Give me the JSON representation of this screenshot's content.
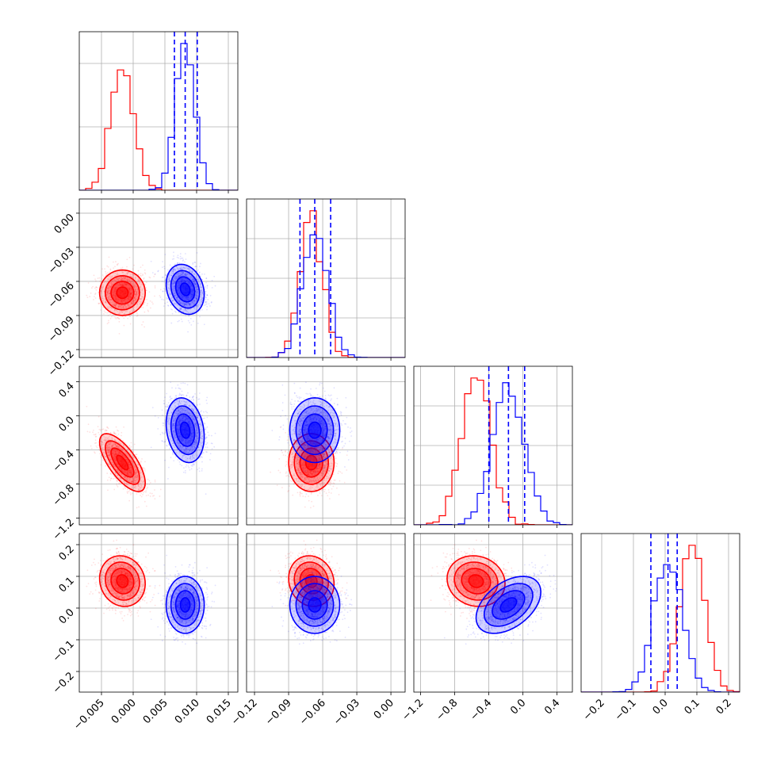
{
  "figure": {
    "kind": "corner plot",
    "series_colors": {
      "red": "#ff0000",
      "blue": "#0000ff"
    }
  },
  "chart_data": {
    "type": "corner",
    "n_params": 4,
    "grid": true,
    "axes": [
      {
        "range": [
          -0.0085,
          0.0165
        ],
        "ticks": [
          -0.005,
          0.0,
          0.005,
          0.01,
          0.015
        ],
        "tick_labels": [
          "−0.005",
          "0.000",
          "0.005",
          "0.010",
          "0.015"
        ]
      },
      {
        "range": [
          -0.127,
          0.0125
        ],
        "ticks": [
          -0.12,
          -0.09,
          -0.06,
          -0.03,
          0.0
        ],
        "tick_labels": [
          "−0.12",
          "−0.09",
          "−0.06",
          "−0.03",
          "0.00"
        ]
      },
      {
        "range": [
          -1.28,
          0.58
        ],
        "ticks": [
          -1.2,
          -0.8,
          -0.4,
          0.0,
          0.4
        ],
        "tick_labels": [
          "−1.2",
          "−0.8",
          "−0.4",
          "0.0",
          "0.4"
        ]
      },
      {
        "range": [
          -0.265,
          0.235
        ],
        "ticks": [
          -0.2,
          -0.1,
          0.0,
          0.1,
          0.2
        ],
        "tick_labels": [
          "−0.2",
          "−0.1",
          "0.0",
          "0.1",
          "0.2"
        ]
      }
    ],
    "series": [
      {
        "color": "#ff0000",
        "mean": [
          -0.0017,
          -0.07,
          -0.55,
          0.085
        ],
        "std": [
          0.0018,
          0.01,
          0.17,
          0.04
        ],
        "corr": [
          [
            0,
            1,
            0.0
          ],
          [
            0,
            2,
            -0.7
          ],
          [
            0,
            3,
            -0.1
          ],
          [
            1,
            2,
            0.0
          ],
          [
            1,
            3,
            -0.1
          ],
          [
            2,
            3,
            -0.1
          ]
        ]
      },
      {
        "color": "#0000ff",
        "mean": [
          0.0082,
          -0.067,
          -0.17,
          0.01
        ],
        "std": [
          0.0015,
          0.011,
          0.19,
          0.045
        ],
        "corr": [
          [
            0,
            1,
            -0.2
          ],
          [
            0,
            2,
            -0.2
          ],
          [
            0,
            3,
            0.0
          ],
          [
            1,
            2,
            0.0
          ],
          [
            1,
            3,
            0.0
          ],
          [
            2,
            3,
            0.45
          ]
        ],
        "quantiles": [
          [
            0.0065,
            0.0082,
            0.0101
          ],
          [
            -0.08,
            -0.067,
            -0.053
          ],
          [
            -0.4,
            -0.17,
            0.02
          ],
          [
            -0.045,
            0.009,
            0.038
          ]
        ]
      }
    ]
  }
}
